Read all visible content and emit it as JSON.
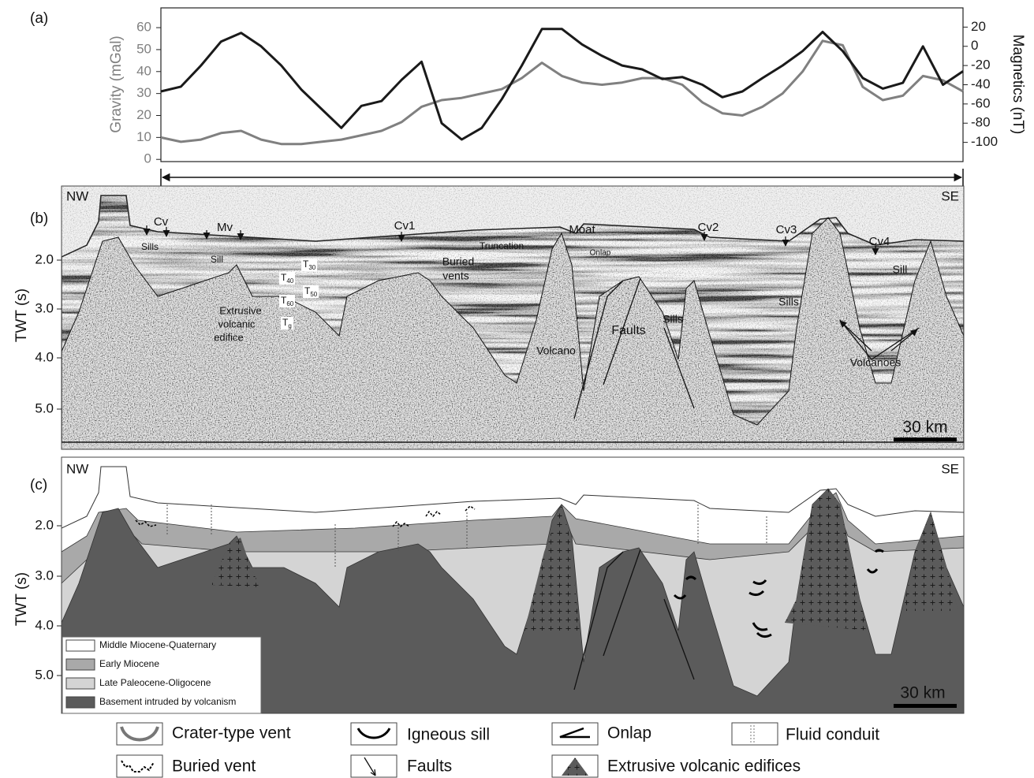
{
  "chart_data": {
    "type": "line",
    "panel_label": "(a)",
    "ylabel": "Gravity (mGal)",
    "y2label": "Magnetics (nT)",
    "categories": [
      null,
      null,
      null,
      null,
      null,
      null,
      null,
      null,
      null,
      null,
      null,
      null,
      null,
      null,
      null,
      null,
      null,
      null,
      null,
      null,
      null,
      null,
      null,
      null,
      null,
      null,
      null,
      null,
      null,
      null,
      null,
      null,
      null,
      null,
      null,
      null,
      null,
      null,
      null,
      null,
      null
    ],
    "series": [
      {
        "color": "#808080",
        "values": [
          10,
          8,
          9,
          12,
          13,
          9,
          7,
          7,
          8,
          9,
          11,
          13,
          17,
          24,
          27,
          28,
          30,
          32,
          37,
          44,
          38,
          35,
          34,
          35,
          37,
          37,
          34,
          26,
          21,
          20,
          24,
          30,
          40,
          54,
          52,
          33,
          27,
          29,
          38,
          36,
          31
        ]
      },
      {
        "color": "#1a1a1a",
        "axis": "y2",
        "values": [
          -47,
          -42,
          -20,
          5,
          14,
          0,
          -20,
          -45,
          -65,
          -85,
          -62,
          -57,
          -35,
          -16,
          -80,
          -97,
          -85,
          -55,
          -20,
          18,
          18,
          2,
          -10,
          -20,
          -24,
          -34,
          -32,
          -40,
          -53,
          -47,
          -33,
          -20,
          -5,
          15,
          -5,
          -33,
          -44,
          -38,
          0,
          -40,
          -26
        ]
      }
    ],
    "ylim": [
      -1,
      69
    ],
    "yticks": [
      0,
      10,
      20,
      30,
      40,
      50,
      60
    ],
    "y2lim": [
      -120,
      40
    ],
    "y2ticks": [
      -100,
      -80,
      -60,
      -40,
      -20,
      0,
      20
    ]
  },
  "panel_b": {
    "label": "(b)",
    "left": "NW",
    "right": "SE",
    "ylabel": "TWT (s)",
    "yticks": [
      "2.0",
      "3.0",
      "4.0",
      "5.0"
    ],
    "annotations": [
      "Cv",
      "Mv",
      "Cv1",
      "Moat",
      "Cv2",
      "Cv3",
      "Cv4",
      "Sills",
      "Sill",
      "Truncation",
      "Buried",
      "vents",
      "Onlap",
      "Extrusive",
      "volcanic",
      "edifice",
      "Volcano",
      "Faults",
      "Sills",
      "Sills",
      "Sill",
      "Volcanoes"
    ],
    "horizons": [
      {
        "base": "T",
        "sub": "30"
      },
      {
        "base": "T",
        "sub": "40"
      },
      {
        "base": "T",
        "sub": "50"
      },
      {
        "base": "T",
        "sub": "60"
      },
      {
        "base": "T",
        "sub": "g"
      }
    ],
    "scale": "30 km"
  },
  "panel_c": {
    "label": "(c)",
    "left": "NW",
    "right": "SE",
    "ylabel": "TWT (s)",
    "yticks": [
      "2.0",
      "3.0",
      "4.0",
      "5.0"
    ],
    "legend": [
      "Middle Miocene-Quaternary",
      "Early Miocene",
      "Late Paleocene-Oligocene",
      "Basement intruded by volcanism"
    ],
    "scale": "30 km"
  },
  "legend": [
    "Crater-type vent",
    "Igneous sill",
    "Onlap",
    "Fluid conduit",
    "Buried vent",
    "Faults",
    "Extrusive volcanic edifices"
  ]
}
